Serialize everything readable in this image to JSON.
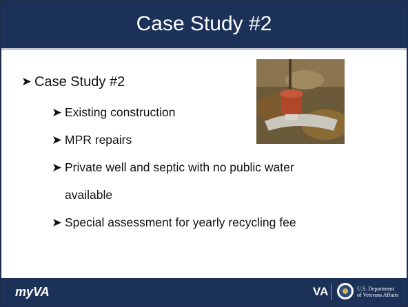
{
  "header": {
    "title": "Case Study #2"
  },
  "bullets": [
    {
      "level": 1,
      "text": "Case Study #2"
    },
    {
      "level": 2,
      "text": "Existing construction"
    },
    {
      "level": 2,
      "text": "MPR repairs"
    },
    {
      "level": 2,
      "text": "Private well and septic with no public water available"
    },
    {
      "level": 2,
      "text": "Special assessment for yearly recycling fee"
    }
  ],
  "footer": {
    "left_logo": "myVA",
    "va_logo": "VA",
    "department": [
      "U.S. Department",
      "of Veterans Affairs"
    ]
  }
}
